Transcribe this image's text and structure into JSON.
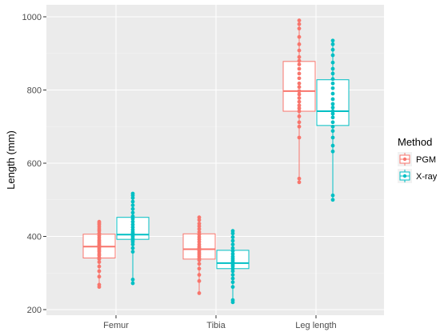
{
  "chart_data": {
    "type": "boxplot",
    "title": "",
    "xlabel": "",
    "ylabel": "Length (mm)",
    "ylim": [
      185,
      1010
    ],
    "yticks": [
      200,
      400,
      600,
      800,
      1000
    ],
    "categories": [
      "Femur",
      "Tibia",
      "Leg length"
    ],
    "grid": true,
    "legend": {
      "title": "Method",
      "position": "right"
    },
    "series": [
      {
        "name": "PGM",
        "color": "#F8766D",
        "boxes": [
          {
            "category": "Femur",
            "min": 262,
            "q1": 341,
            "median": 372,
            "q3": 406,
            "max": 440,
            "points": [
              262,
              268,
              290,
              305,
              318,
              330,
              338,
              342,
              348,
              352,
              358,
              362,
              366,
              370,
              372,
              375,
              378,
              382,
              386,
              390,
              396,
              402,
              408,
              415,
              420,
              426,
              432,
              436,
              440
            ]
          },
          {
            "category": "Tibia",
            "min": 245,
            "q1": 338,
            "median": 365,
            "q3": 407,
            "max": 452,
            "points": [
              245,
              278,
              295,
              312,
              325,
              335,
              340,
              345,
              350,
              355,
              360,
              364,
              368,
              372,
              378,
              385,
              392,
              398,
              405,
              412,
              420,
              428,
              435,
              445,
              452
            ]
          },
          {
            "category": "Leg length",
            "min": 548,
            "q1": 742,
            "median": 797,
            "q3": 878,
            "max": 990,
            "points": [
              548,
              558,
              670,
              700,
              712,
              728,
              742,
              750,
              758,
              768,
              778,
              788,
              797,
              808,
              818,
              832,
              845,
              858,
              870,
              880,
              890,
              908,
              925,
              945,
              968,
              980,
              990
            ]
          }
        ]
      },
      {
        "name": "X-ray",
        "color": "#00BFC4",
        "boxes": [
          {
            "category": "Femur",
            "min": 272,
            "q1": 392,
            "median": 405,
            "q3": 452,
            "max": 517,
            "points": [
              272,
              282,
              358,
              368,
              378,
              385,
              390,
              395,
              400,
              404,
              408,
              412,
              418,
              425,
              432,
              440,
              448,
              455,
              465,
              475,
              485,
              495,
              505,
              512,
              517
            ]
          },
          {
            "category": "Tibia",
            "min": 220,
            "q1": 312,
            "median": 327,
            "q3": 362,
            "max": 415,
            "points": [
              220,
              226,
              262,
              275,
              285,
              295,
              305,
              312,
              318,
              322,
              326,
              330,
              335,
              340,
              345,
              352,
              360,
              368,
              378,
              388,
              398,
              408,
              415
            ]
          },
          {
            "category": "Leg length",
            "min": 500,
            "q1": 703,
            "median": 742,
            "q3": 828,
            "max": 935,
            "points": [
              500,
              512,
              632,
              648,
              670,
              688,
              700,
              712,
              725,
              735,
              742,
              752,
              762,
              775,
              790,
              805,
              818,
              830,
              845,
              858,
              875,
              895,
              910,
              925,
              935
            ]
          }
        ]
      }
    ]
  }
}
